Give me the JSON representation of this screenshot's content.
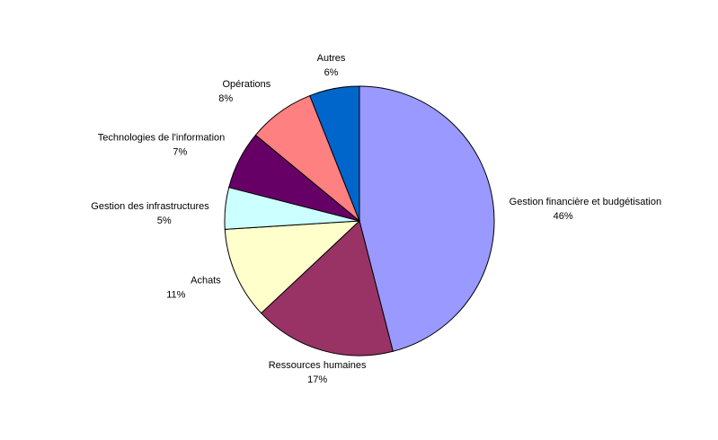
{
  "chart_data": {
    "type": "pie",
    "categories": [
      "Gestion financière et budgétisation",
      "Ressources humaines",
      "Achats",
      "Gestion des infrastructures",
      "Technologies de l'information",
      "Opérations",
      "Autres"
    ],
    "values": [
      46,
      17,
      11,
      5,
      7,
      8,
      6
    ],
    "value_labels": [
      "46%",
      "17%",
      "11%",
      "5%",
      "7%",
      "8%",
      "6%"
    ],
    "colors": [
      "#9999ff",
      "#993366",
      "#ffffcc",
      "#ccffff",
      "#660066",
      "#ff8080",
      "#0066cc"
    ]
  }
}
